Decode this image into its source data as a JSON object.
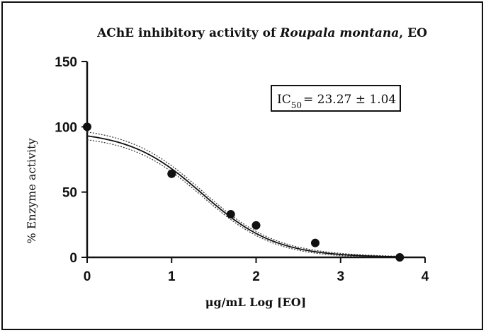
{
  "chart_data": {
    "type": "scatter",
    "title_parts": {
      "prefix": "AChE inhibitory activity of ",
      "species": "Roupala montana",
      "suffix": ", EO"
    },
    "xlabel": "μg/mL Log [EO]",
    "ylabel": "% Enzyme activity",
    "xlim": [
      0,
      4
    ],
    "ylim": [
      0,
      150
    ],
    "x_ticks": [
      "0",
      "1",
      "2",
      "3",
      "4"
    ],
    "y_ticks": [
      "0",
      "50",
      "100",
      "150"
    ],
    "x_tick_values": [
      0,
      1,
      2,
      3,
      4
    ],
    "y_tick_values": [
      0,
      50,
      100,
      150
    ],
    "points": {
      "x": [
        0,
        1.0,
        1.7,
        2.0,
        2.7,
        3.7
      ],
      "y": [
        100,
        64,
        33,
        24.5,
        11,
        0
      ]
    },
    "fit": {
      "top": 97,
      "bottom": 0,
      "log_ic50": 1.3668,
      "hill_slope": -1.0,
      "band_offset": 3
    },
    "annotation": {
      "main": "IC",
      "subscript": "50",
      "rest": "= 23.27 ± 1.04"
    },
    "grid": false
  }
}
